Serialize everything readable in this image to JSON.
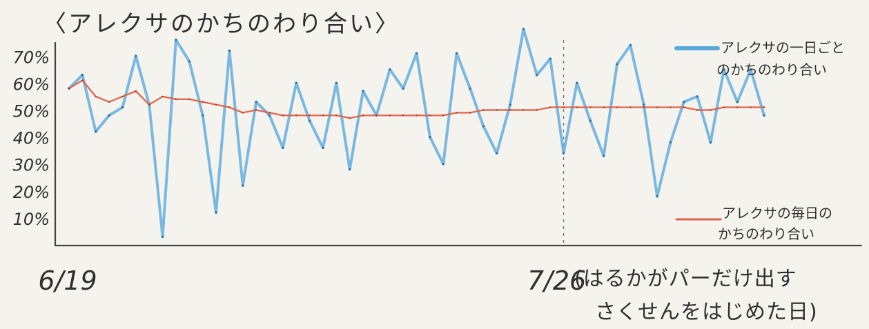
{
  "chart_data": {
    "type": "line",
    "title": "〈アレクサのかちのわり合い〉",
    "y_ticks": [
      "70%",
      "60%",
      "50%",
      "40%",
      "30%",
      "20%",
      "10%"
    ],
    "y_tick_values": [
      70,
      60,
      50,
      40,
      30,
      20,
      10
    ],
    "ylim": [
      0,
      78
    ],
    "x_labels": [
      {
        "text": "6/19",
        "index": 0
      },
      {
        "text": "7/26",
        "index": 37
      }
    ],
    "annotation": {
      "index": 37,
      "lines": [
        "(はるかがパーだけ出す",
        "さくせんをはじめた日)"
      ]
    },
    "series": [
      {
        "name": "アレクサの一日ごとのかちのわり合い",
        "legend_lines": [
          "アレクサの一日ごと",
          "のかちのわり合い"
        ],
        "color": "#5aa9dc",
        "values": [
          58,
          63,
          42,
          48,
          51,
          70,
          52,
          3,
          76,
          68,
          48,
          12,
          72,
          22,
          53,
          48,
          36,
          60,
          46,
          36,
          60,
          28,
          57,
          48,
          65,
          58,
          71,
          40,
          30,
          71,
          58,
          44,
          34,
          52,
          80,
          63,
          69,
          34,
          60,
          46,
          33,
          67,
          74,
          52,
          18,
          38,
          53,
          55,
          38,
          65,
          53,
          65,
          48
        ]
      },
      {
        "name": "アレクサの毎日のかちのわり合い",
        "legend_lines": [
          "アレクサの毎日の",
          "かちのわり合い"
        ],
        "color": "#e2624a",
        "values": [
          58,
          61,
          55,
          53,
          55,
          57,
          52,
          55,
          54,
          54,
          53,
          52,
          51,
          49,
          50,
          49,
          48,
          48,
          48,
          48,
          48,
          47,
          48,
          48,
          48,
          48,
          48,
          48,
          48,
          49,
          49,
          50,
          50,
          50,
          50,
          50,
          51,
          51,
          51,
          51,
          51,
          51,
          51,
          51,
          51,
          51,
          51,
          50,
          50,
          51,
          51,
          51,
          51
        ]
      }
    ]
  }
}
